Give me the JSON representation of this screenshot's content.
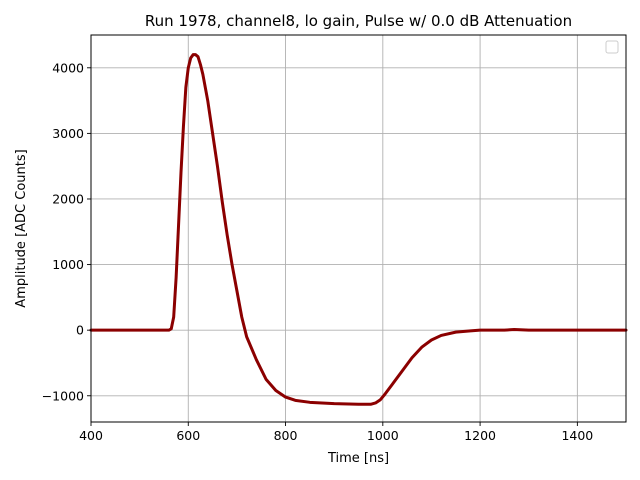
{
  "chart_data": {
    "type": "line",
    "title": "Run 1978, channel8, lo gain, Pulse w/ 0.0 dB Attenuation",
    "xlabel": "Time [ns]",
    "ylabel": "Amplitude [ADC Counts]",
    "xlim": [
      400,
      1500
    ],
    "ylim": [
      -1400,
      4500
    ],
    "xticks": [
      400,
      600,
      800,
      1000,
      1200,
      1400
    ],
    "yticks": [
      -1000,
      0,
      1000,
      2000,
      3000,
      4000
    ],
    "xtick_labels": [
      "400",
      "600",
      "800",
      "1000",
      "1200",
      "1400"
    ],
    "ytick_labels": [
      "−1000",
      "0",
      "1000",
      "2000",
      "3000",
      "4000"
    ],
    "grid": true,
    "legend_placement": "upper right",
    "series": [
      {
        "color": "#8b0000",
        "x": [
          400,
          500,
          560,
          565,
          570,
          575,
          580,
          585,
          590,
          595,
          600,
          605,
          610,
          615,
          620,
          625,
          630,
          635,
          640,
          650,
          660,
          670,
          680,
          690,
          700,
          710,
          720,
          740,
          760,
          780,
          800,
          820,
          850,
          900,
          950,
          975,
          985,
          995,
          1005,
          1020,
          1040,
          1060,
          1080,
          1100,
          1120,
          1150,
          1180,
          1200,
          1250,
          1270,
          1300,
          1400,
          1500
        ],
        "y": [
          0,
          0,
          0,
          20,
          200,
          800,
          1600,
          2400,
          3100,
          3700,
          4000,
          4150,
          4200,
          4200,
          4170,
          4050,
          3900,
          3700,
          3500,
          3000,
          2500,
          1950,
          1450,
          1000,
          600,
          200,
          -100,
          -450,
          -750,
          -920,
          -1020,
          -1070,
          -1100,
          -1120,
          -1130,
          -1130,
          -1110,
          -1060,
          -970,
          -820,
          -620,
          -420,
          -260,
          -150,
          -80,
          -30,
          -10,
          0,
          0,
          10,
          0,
          0,
          0
        ]
      }
    ]
  }
}
